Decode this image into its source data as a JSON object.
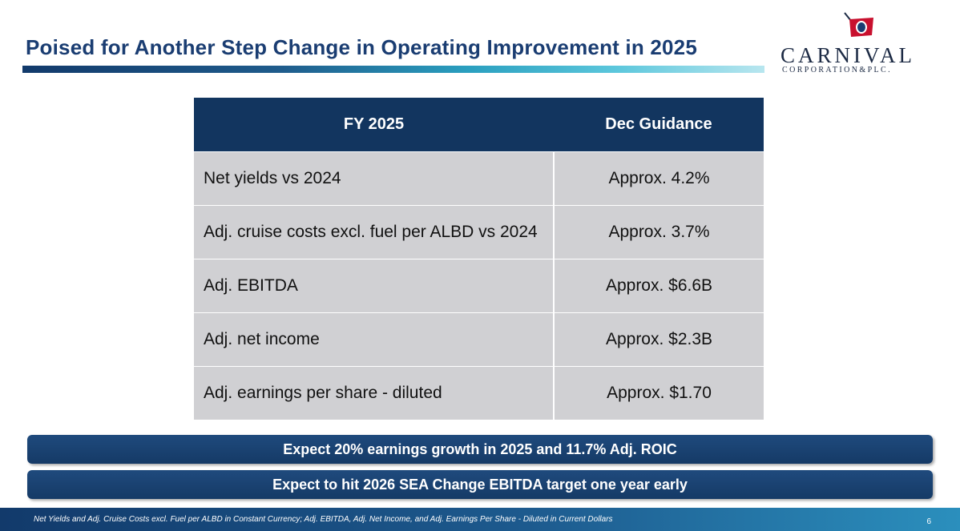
{
  "header": {
    "title": "Poised for Another Step Change in Operating Improvement in 2025"
  },
  "logo": {
    "word": "CARNIVAL",
    "sub": "CORPORATION&PLC."
  },
  "table": {
    "headers": [
      "FY 2025",
      "Dec Guidance"
    ],
    "rows": [
      {
        "label": "Net yields vs 2024",
        "value": "Approx. 4.2%"
      },
      {
        "label": "Adj. cruise costs excl. fuel per ALBD vs 2024",
        "value": "Approx. 3.7%"
      },
      {
        "label": "Adj. EBITDA",
        "value": "Approx. $6.6B"
      },
      {
        "label": "Adj. net income",
        "value": "Approx. $2.3B"
      },
      {
        "label": "Adj. earnings per share - diluted",
        "value": "Approx. $1.70"
      }
    ]
  },
  "banners": [
    "Expect 20% earnings growth in 2025 and 11.7% Adj. ROIC",
    "Expect to hit 2026 SEA Change EBITDA target one year early"
  ],
  "footer": {
    "note": "Net Yields and Adj. Cruise Costs excl. Fuel per ALBD in Constant Currency; Adj. EBITDA, Adj. Net Income, and Adj. Earnings Per Share - Diluted in Current Dollars",
    "page": "6"
  },
  "colors": {
    "title": "#1a3d72",
    "header_bg": "#12355f",
    "row_bg": "#d0d0d3",
    "flag_red": "#c8102e"
  }
}
